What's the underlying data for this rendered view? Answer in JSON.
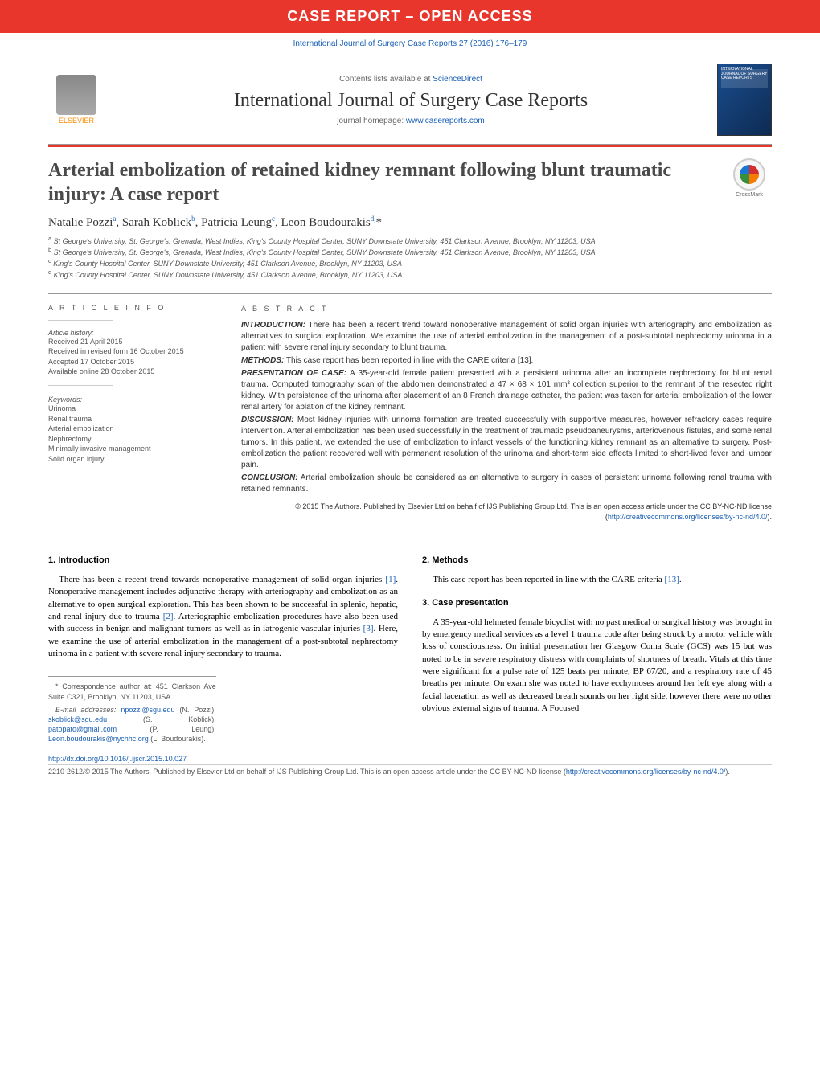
{
  "banner": "CASE REPORT – OPEN ACCESS",
  "citation": "International Journal of Surgery Case Reports 27 (2016) 176–179",
  "header": {
    "contents_prefix": "Contents lists available at ",
    "contents_link": "ScienceDirect",
    "journal": "International Journal of Surgery Case Reports",
    "homepage_prefix": "journal homepage: ",
    "homepage_link": "www.casereports.com",
    "elsevier": "ELSEVIER",
    "cover_text": "INTERNATIONAL JOURNAL OF SURGERY CASE REPORTS"
  },
  "title": "Arterial embolization of retained kidney remnant following blunt traumatic injury: A case report",
  "crossmark": "CrossMark",
  "authors_html": "Natalie Pozzi<sup>a</sup>, Sarah Koblick<sup>b</sup>, Patricia Leung<sup>c</sup>, Leon Boudourakis<sup>d,</sup>*",
  "affiliations": [
    {
      "sup": "a",
      "text": "St George's University, St. George's, Grenada, West Indies; King's County Hospital Center, SUNY Downstate University, 451 Clarkson Avenue, Brooklyn, NY 11203, USA"
    },
    {
      "sup": "b",
      "text": "St George's University, St. George's, Grenada, West Indies; King's County Hospital Center, SUNY Downstate University, 451 Clarkson Avenue, Brooklyn, NY 11203, USA"
    },
    {
      "sup": "c",
      "text": "King's County Hospital Center, SUNY Downstate University, 451 Clarkson Avenue, Brooklyn, NY 11203, USA"
    },
    {
      "sup": "d",
      "text": "King's County Hospital Center, SUNY Downstate University, 451 Clarkson Avenue, Brooklyn, NY 11203, USA"
    }
  ],
  "article_info": {
    "heading": "a r t i c l e   i n f o",
    "history_label": "Article history:",
    "history": [
      "Received 21 April 2015",
      "Received in revised form 16 October 2015",
      "Accepted 17 October 2015",
      "Available online 28 October 2015"
    ],
    "keywords_label": "Keywords:",
    "keywords": [
      "Urinoma",
      "Renal trauma",
      "Arterial embolization",
      "Nephrectomy",
      "Minimally invasive management",
      "Solid organ injury"
    ]
  },
  "abstract": {
    "heading": "a b s t r a c t",
    "sections": [
      {
        "label": "INTRODUCTION:",
        "text": " There has been a recent trend toward nonoperative management of solid organ injuries with arteriography and embolization as alternatives to surgical exploration. We examine the use of arterial embolization in the management of a post-subtotal nephrectomy urinoma in a patient with severe renal injury secondary to blunt trauma."
      },
      {
        "label": "METHODS:",
        "text": " This case report has been reported in line with the CARE criteria [13]."
      },
      {
        "label": "PRESENTATION OF CASE:",
        "text": " A 35-year-old female patient presented with a persistent urinoma after an incomplete nephrectomy for blunt renal trauma. Computed tomography scan of the abdomen demonstrated a 47 × 68 × 101 mm³ collection superior to the remnant of the resected right kidney. With persistence of the urinoma after placement of an 8 French drainage catheter, the patient was taken for arterial embolization of the lower renal artery for ablation of the kidney remnant."
      },
      {
        "label": "DISCUSSION:",
        "text": " Most kidney injuries with urinoma formation are treated successfully with supportive measures, however refractory cases require intervention. Arterial embolization has been used successfully in the treatment of traumatic pseudoaneurysms, arteriovenous fistulas, and some renal tumors. In this patient, we extended the use of embolization to infarct vessels of the functioning kidney remnant as an alternative to surgery. Post-embolization the patient recovered well with permanent resolution of the urinoma and short-term side effects limited to short-lived fever and lumbar pain."
      },
      {
        "label": "CONCLUSION:",
        "text": " Arterial embolization should be considered as an alternative to surgery in cases of persistent urinoma following renal trauma with retained remnants."
      }
    ],
    "copyright_pre": "© 2015 The Authors. Published by Elsevier Ltd on behalf of IJS Publishing Group Ltd. This is an open access article under the CC BY-NC-ND license (",
    "copyright_link": "http://creativecommons.org/licenses/by-nc-nd/4.0/",
    "copyright_post": ")."
  },
  "body": {
    "col1": {
      "h1": "1.  Introduction",
      "p1_pre": "There has been a recent trend towards nonoperative management of solid organ injuries ",
      "p1_ref1": "[1]",
      "p1_mid": ". Nonoperative management includes adjunctive therapy with arteriography and embolization as an alternative to open surgical exploration. This has been shown to be successful in splenic, hepatic, and renal injury due to trauma ",
      "p1_ref2": "[2]",
      "p1_mid2": ". Arteriographic embolization procedures have also been used with success in benign and malignant tumors as well as in iatrogenic vascular injuries ",
      "p1_ref3": "[3]",
      "p1_end": ". Here, we examine the use of arterial embolization in the management of a post-subtotal nephrectomy urinoma in a patient with severe renal injury secondary to trauma."
    },
    "col2": {
      "h1": "2.  Methods",
      "p1_pre": "This case report has been reported in line with the CARE criteria ",
      "p1_ref": "[13]",
      "p1_end": ".",
      "h2": "3.  Case presentation",
      "p2": "A 35-year-old helmeted female bicyclist with no past medical or surgical history was brought in by emergency medical services as a level 1 trauma code after being struck by a motor vehicle with loss of consciousness. On initial presentation her Glasgow Coma Scale (GCS) was 15 but was noted to be in severe respiratory distress with complaints of shortness of breath. Vitals at this time were significant for a pulse rate of 125 beats per minute, BP 67/20, and a respiratory rate of 45 breaths per minute. On exam she was noted to have ecchymoses around her left eye along with a facial laceration as well as decreased breath sounds on her right side, however there were no other obvious external signs of trauma. A Focused"
    }
  },
  "footnotes": {
    "corr": "* Correspondence author at: 451 Clarkson Ave Suite C321, Brooklyn, NY 11203, USA.",
    "email_label": "E-mail addresses: ",
    "emails": [
      {
        "addr": "npozzi@sgu.edu",
        "who": " (N. Pozzi), "
      },
      {
        "addr": "skoblick@sgu.edu",
        "who": " (S. Koblick), "
      },
      {
        "addr": "patopato@gmail.com",
        "who": " (P. Leung), "
      },
      {
        "addr": "Leon.boudourakis@nychhc.org",
        "who": " (L. Boudourakis)."
      }
    ]
  },
  "doi": {
    "url": "http://dx.doi.org/10.1016/j.ijscr.2015.10.027"
  },
  "license": {
    "pre": "2210-2612/© 2015 The Authors. Published by Elsevier Ltd on behalf of IJS Publishing Group Ltd. This is an open access article under the CC BY-NC-ND license (",
    "link1": "http://creativecommons.org/licenses/by-nc-nd/4.0/",
    "post": ")."
  },
  "colors": {
    "red": "#e8362d",
    "link": "#1a5fb4",
    "text": "#333333",
    "muted": "#555555"
  }
}
